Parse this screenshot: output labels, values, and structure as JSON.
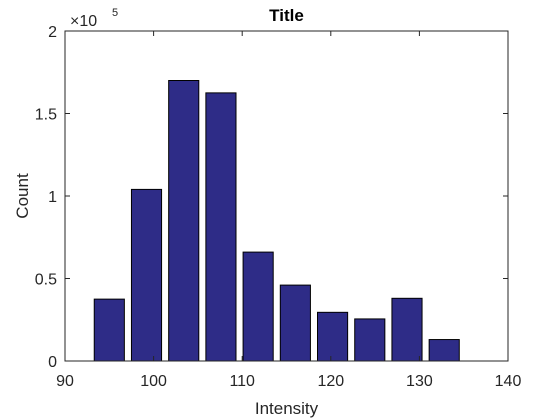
{
  "chart_data": {
    "type": "bar",
    "title": "Title",
    "xlabel": "Intensity",
    "ylabel": "Count",
    "xlim": [
      90,
      140
    ],
    "ylim": [
      0,
      200000
    ],
    "x_ticks": [
      90,
      100,
      110,
      120,
      130,
      140
    ],
    "x_tick_labels": [
      "90",
      "100",
      "110",
      "120",
      "130",
      "140"
    ],
    "y_ticks": [
      0,
      50000,
      100000,
      150000,
      200000
    ],
    "y_tick_labels": [
      "0",
      "0.5",
      "1",
      "1.5",
      "2"
    ],
    "y_exponent_label": {
      "base": "×10",
      "power": "5"
    },
    "bar_width": 3.4,
    "x": [
      95.0,
      99.2,
      103.4,
      107.6,
      111.8,
      116.0,
      120.2,
      124.4,
      128.6,
      132.8
    ],
    "values": [
      37500,
      104000,
      170000,
      162500,
      66000,
      46000,
      29500,
      25500,
      38000,
      13000
    ],
    "bar_color": "#2e2c87",
    "bar_edge_color": "#000000",
    "grid": false
  }
}
